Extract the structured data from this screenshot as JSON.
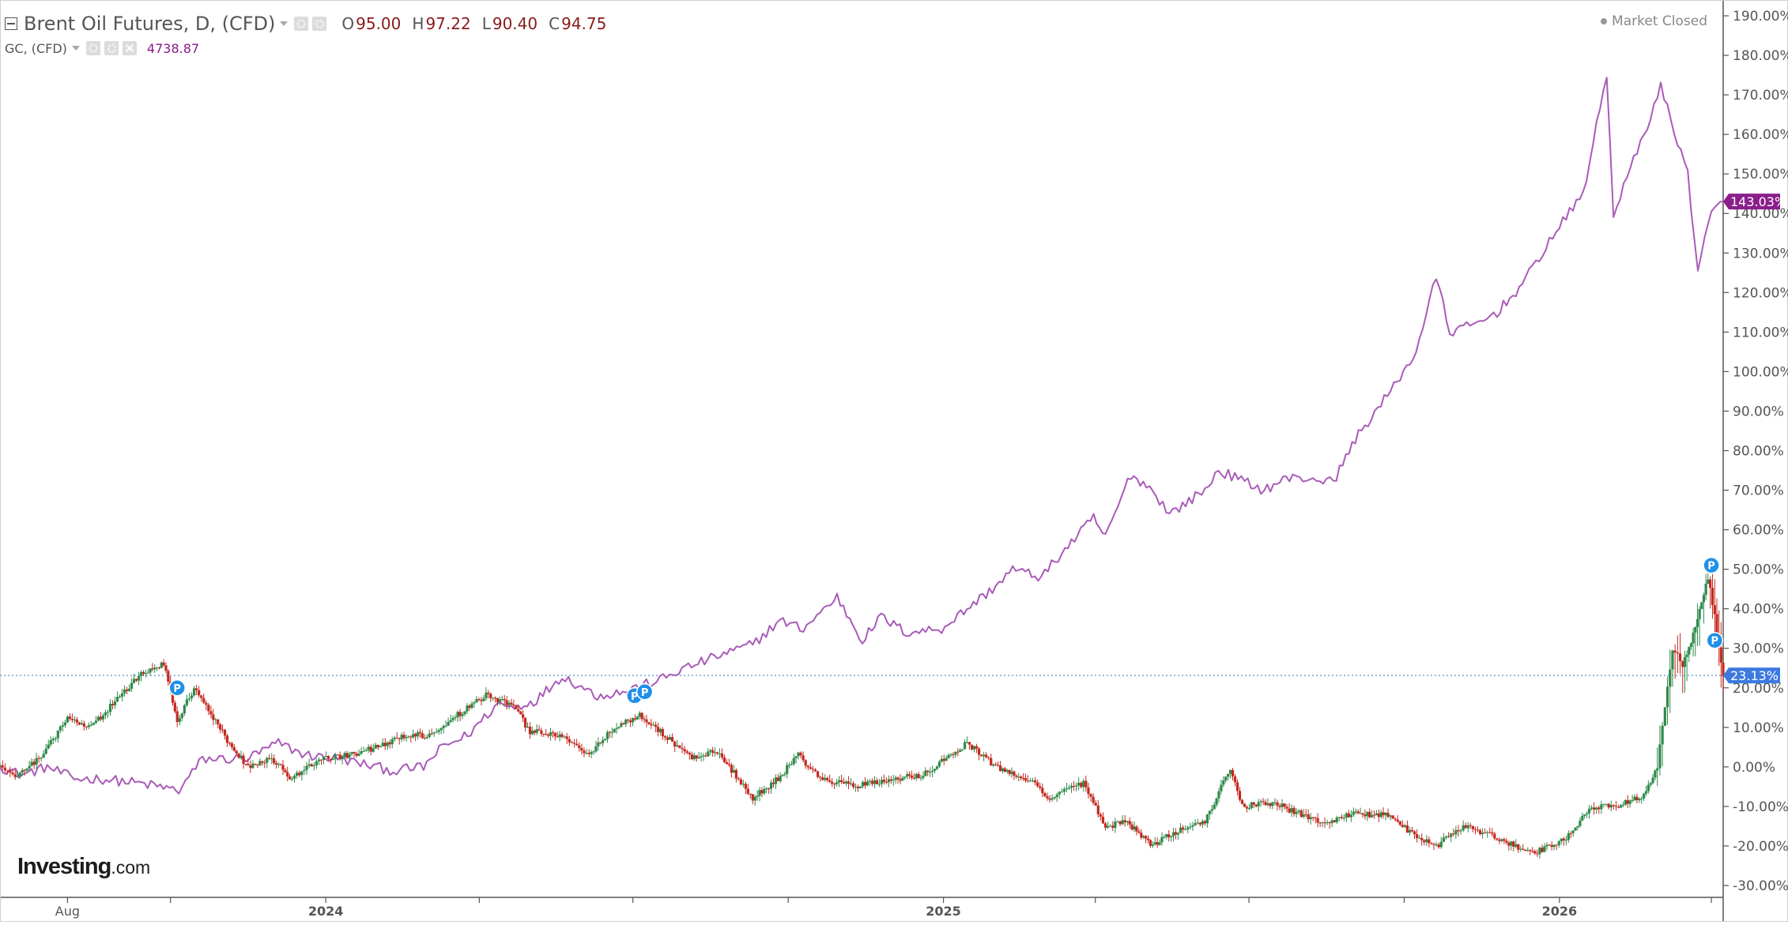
{
  "header": {
    "main_title": "Brent Oil Futures, D, (CFD)",
    "ohlc": [
      {
        "key": "O",
        "value": "95.00"
      },
      {
        "key": "H",
        "value": "97.22"
      },
      {
        "key": "L",
        "value": "90.40"
      },
      {
        "key": "C",
        "value": "94.75"
      }
    ],
    "second_title": "GC, (CFD)",
    "second_value": "4738.87",
    "market_status": "Market Closed",
    "icons": [
      "collapse-icon",
      "chevron-down-icon",
      "eye-icon",
      "gear-icon",
      "close-icon"
    ]
  },
  "watermark": {
    "brand": "Investing",
    "suffix": ".com"
  },
  "colors": {
    "up": "#2f8a4a",
    "down": "#c6281f",
    "gold_line": "#a95bb8",
    "gold_tag": "#8a1e8a",
    "brent_tag": "#3d7ae0",
    "marker": "#1e90e8",
    "dotted_line": "#5b8fd6"
  },
  "chart_data": {
    "type": "line",
    "y_unit": "percent change",
    "ylim": [
      -33,
      194
    ],
    "y_ticks": [
      "190.00%",
      "180.00%",
      "170.00%",
      "160.00%",
      "150.00%",
      "140.00%",
      "130.00%",
      "120.00%",
      "110.00%",
      "100.00%",
      "90.00%",
      "80.00%",
      "70.00%",
      "60.00%",
      "50.00%",
      "40.00%",
      "30.00%",
      "20.00%",
      "10.00%",
      "0.00%",
      "-10.00%",
      "-20.00%",
      "-30.00%"
    ],
    "x_range": [
      "2023-06-22",
      "2026-04-08"
    ],
    "x_ticks": [
      {
        "date": "2023-08-01",
        "label": "Aug"
      },
      {
        "date": "2023-10-01",
        "label": ""
      },
      {
        "date": "2024-01-01",
        "label": "2024"
      },
      {
        "date": "2024-04-01",
        "label": ""
      },
      {
        "date": "2024-07-01",
        "label": ""
      },
      {
        "date": "2024-10-01",
        "label": ""
      },
      {
        "date": "2025-01-01",
        "label": "2025"
      },
      {
        "date": "2025-04-01",
        "label": ""
      },
      {
        "date": "2025-07-01",
        "label": ""
      },
      {
        "date": "2025-10-01",
        "label": ""
      },
      {
        "date": "2026-01-01",
        "label": "2026"
      },
      {
        "date": "2026-04-01",
        "label": ""
      }
    ],
    "reference_line": {
      "value": 23.13,
      "label": "23.13%"
    },
    "last_value_tags": [
      {
        "series": "GC, (CFD)",
        "value": 143.03,
        "label": "143.03%"
      },
      {
        "series": "Brent Oil Futures, D, (CFD)",
        "value": 23.13,
        "label": "23.13%"
      }
    ],
    "grid": false,
    "series": [
      {
        "name": "GC, (CFD)",
        "type": "line",
        "points": [
          [
            "2023-06-22",
            0
          ],
          [
            "2023-07-05",
            -2
          ],
          [
            "2023-07-20",
            0
          ],
          [
            "2023-08-05",
            -3
          ],
          [
            "2023-08-20",
            -3
          ],
          [
            "2023-09-10",
            -4
          ],
          [
            "2023-09-25",
            -5
          ],
          [
            "2023-10-06",
            -6
          ],
          [
            "2023-10-20",
            2
          ],
          [
            "2023-11-15",
            2
          ],
          [
            "2023-12-04",
            6
          ],
          [
            "2023-12-20",
            3
          ],
          [
            "2024-01-10",
            2
          ],
          [
            "2024-02-10",
            -1
          ],
          [
            "2024-02-28",
            0
          ],
          [
            "2024-03-10",
            5
          ],
          [
            "2024-03-25",
            8
          ],
          [
            "2024-04-12",
            16
          ],
          [
            "2024-04-22",
            15
          ],
          [
            "2024-05-05",
            17
          ],
          [
            "2024-05-20",
            23
          ],
          [
            "2024-06-10",
            18
          ],
          [
            "2024-06-25",
            19
          ],
          [
            "2024-07-17",
            22
          ],
          [
            "2024-08-01",
            25
          ],
          [
            "2024-08-20",
            28
          ],
          [
            "2024-09-10",
            31
          ],
          [
            "2024-09-26",
            37
          ],
          [
            "2024-10-10",
            35
          ],
          [
            "2024-10-30",
            43
          ],
          [
            "2024-11-14",
            32
          ],
          [
            "2024-11-25",
            38
          ],
          [
            "2024-12-10",
            34
          ],
          [
            "2024-12-31",
            35
          ],
          [
            "2025-01-15",
            40
          ],
          [
            "2025-01-30",
            45
          ],
          [
            "2025-02-11",
            50
          ],
          [
            "2025-02-28",
            48
          ],
          [
            "2025-03-14",
            55
          ],
          [
            "2025-03-31",
            63
          ],
          [
            "2025-04-07",
            58
          ],
          [
            "2025-04-22",
            74
          ],
          [
            "2025-05-05",
            70
          ],
          [
            "2025-05-15",
            64
          ],
          [
            "2025-06-05",
            70
          ],
          [
            "2025-06-13",
            75
          ],
          [
            "2025-07-10",
            70
          ],
          [
            "2025-07-23",
            73
          ],
          [
            "2025-08-08",
            73
          ],
          [
            "2025-08-20",
            72
          ],
          [
            "2025-09-02",
            83
          ],
          [
            "2025-09-23",
            95
          ],
          [
            "2025-10-08",
            105
          ],
          [
            "2025-10-20",
            124
          ],
          [
            "2025-10-28",
            110
          ],
          [
            "2025-11-13",
            112
          ],
          [
            "2025-11-25",
            115
          ],
          [
            "2025-12-10",
            122
          ],
          [
            "2025-12-26",
            133
          ],
          [
            "2026-01-15",
            145
          ],
          [
            "2026-01-29",
            175
          ],
          [
            "2026-02-02",
            140
          ],
          [
            "2026-02-20",
            160
          ],
          [
            "2026-03-02",
            172
          ],
          [
            "2026-03-18",
            150
          ],
          [
            "2026-03-24",
            126
          ],
          [
            "2026-04-01",
            140
          ],
          [
            "2026-04-08",
            143
          ]
        ]
      },
      {
        "name": "Brent Oil Futures, D, (CFD)",
        "type": "candlestick",
        "points": [
          [
            "2023-06-22",
            0
          ],
          [
            "2023-07-01",
            -3
          ],
          [
            "2023-07-15",
            2
          ],
          [
            "2023-08-01",
            12
          ],
          [
            "2023-08-15",
            10
          ],
          [
            "2023-09-01",
            18
          ],
          [
            "2023-09-15",
            24
          ],
          [
            "2023-09-27",
            26
          ],
          [
            "2023-10-05",
            12
          ],
          [
            "2023-10-15",
            20
          ],
          [
            "2023-10-25",
            13
          ],
          [
            "2023-11-05",
            6
          ],
          [
            "2023-11-16",
            0
          ],
          [
            "2023-11-30",
            2
          ],
          [
            "2023-12-12",
            -3
          ],
          [
            "2023-12-28",
            2
          ],
          [
            "2024-01-15",
            3
          ],
          [
            "2024-02-01",
            5
          ],
          [
            "2024-02-15",
            8
          ],
          [
            "2024-03-01",
            8
          ],
          [
            "2024-03-15",
            12
          ],
          [
            "2024-04-05",
            18
          ],
          [
            "2024-04-20",
            16
          ],
          [
            "2024-05-01",
            9
          ],
          [
            "2024-05-20",
            8
          ],
          [
            "2024-06-05",
            3
          ],
          [
            "2024-06-20",
            10
          ],
          [
            "2024-07-05",
            13
          ],
          [
            "2024-07-20",
            8
          ],
          [
            "2024-08-05",
            2
          ],
          [
            "2024-08-20",
            4
          ],
          [
            "2024-09-10",
            -8
          ],
          [
            "2024-09-25",
            -3
          ],
          [
            "2024-10-07",
            3
          ],
          [
            "2024-10-20",
            -3
          ],
          [
            "2024-11-10",
            -5
          ],
          [
            "2024-12-01",
            -3
          ],
          [
            "2024-12-20",
            -2
          ],
          [
            "2025-01-15",
            6
          ],
          [
            "2025-02-01",
            0
          ],
          [
            "2025-02-20",
            -3
          ],
          [
            "2025-03-05",
            -8
          ],
          [
            "2025-03-25",
            -4
          ],
          [
            "2025-04-07",
            -15
          ],
          [
            "2025-04-20",
            -14
          ],
          [
            "2025-05-05",
            -20
          ],
          [
            "2025-05-20",
            -16
          ],
          [
            "2025-06-05",
            -14
          ],
          [
            "2025-06-20",
            0
          ],
          [
            "2025-06-27",
            -10
          ],
          [
            "2025-07-15",
            -9
          ],
          [
            "2025-08-01",
            -12
          ],
          [
            "2025-08-15",
            -14
          ],
          [
            "2025-09-01",
            -12
          ],
          [
            "2025-09-20",
            -12
          ],
          [
            "2025-10-10",
            -18
          ],
          [
            "2025-10-20",
            -20
          ],
          [
            "2025-11-05",
            -15
          ],
          [
            "2025-11-25",
            -18
          ],
          [
            "2025-12-16",
            -22
          ],
          [
            "2026-01-05",
            -18
          ],
          [
            "2026-01-20",
            -10
          ],
          [
            "2026-02-05",
            -10
          ],
          [
            "2026-02-20",
            -7
          ],
          [
            "2026-02-28",
            0
          ],
          [
            "2026-03-09",
            30
          ],
          [
            "2026-03-15",
            26
          ],
          [
            "2026-03-20",
            32
          ],
          [
            "2026-03-25",
            40
          ],
          [
            "2026-03-30",
            48
          ],
          [
            "2026-04-03",
            38
          ],
          [
            "2026-04-08",
            23
          ]
        ]
      }
    ],
    "markers": [
      {
        "date": "2023-10-05",
        "value": 20,
        "label": "P"
      },
      {
        "date": "2024-07-02",
        "value": 18,
        "label": "P"
      },
      {
        "date": "2024-07-08",
        "value": 19,
        "label": "P"
      },
      {
        "date": "2026-04-01",
        "value": 51,
        "label": "P"
      },
      {
        "date": "2026-04-03",
        "value": 32,
        "label": "P"
      }
    ]
  }
}
